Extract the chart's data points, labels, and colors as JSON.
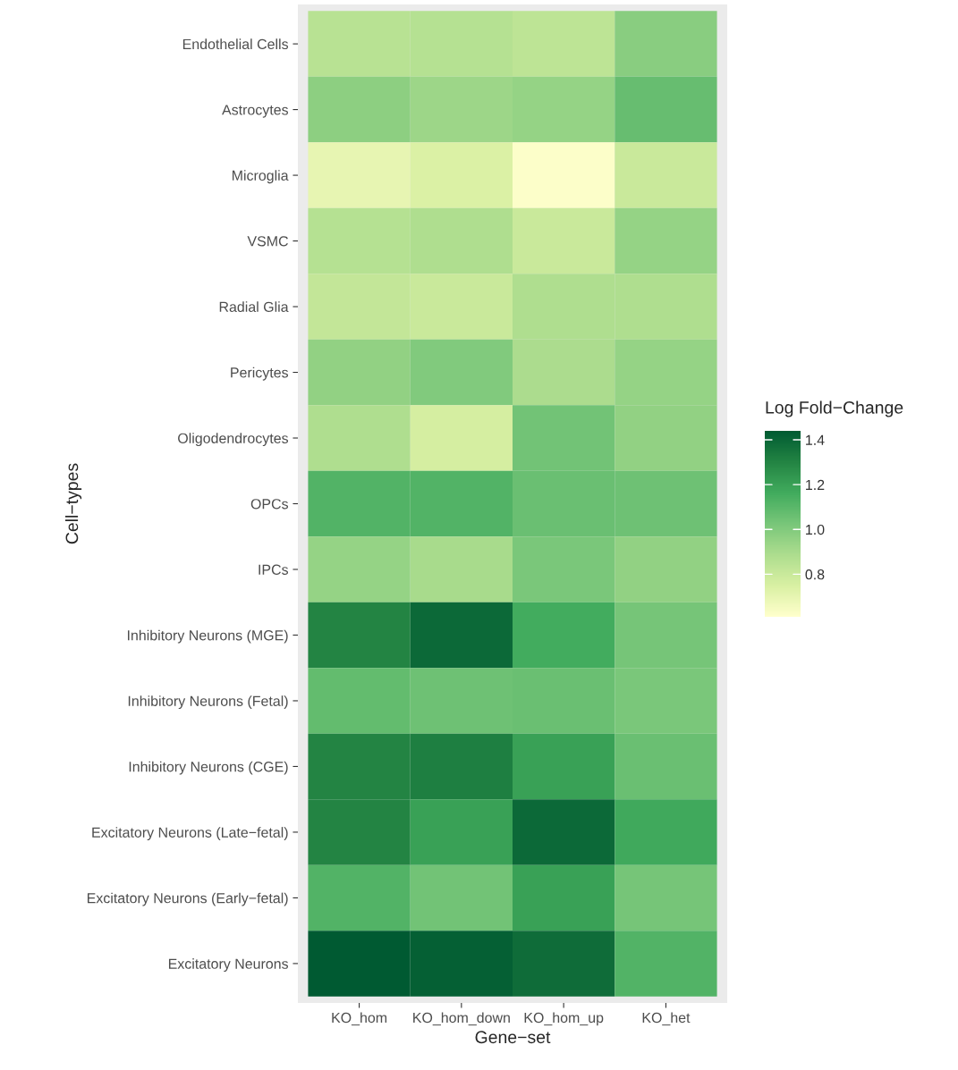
{
  "chart_data": {
    "type": "heatmap",
    "xlabel": "Gene−set",
    "ylabel": "Cell−types",
    "clabel": "Log Fold−Change",
    "categories": [
      "KO_hom",
      "KO_hom_down",
      "KO_hom_up",
      "KO_het"
    ],
    "y_categories": [
      "Endothelial Cells",
      "Astrocytes",
      "Microglia",
      "VSMC",
      "Radial Glia",
      "Pericytes",
      "Oligodendrocytes",
      "OPCs",
      "IPCs",
      "Inhibitory Neurons (MGE)",
      "Inhibitory Neurons (Fetal)",
      "Inhibitory Neurons (CGE)",
      "Excitatory Neurons (Late−fetal)",
      "Excitatory Neurons (Early−fetal)",
      "Excitatory Neurons"
    ],
    "cells": [
      [
        0.85,
        0.86,
        0.84,
        0.98
      ],
      [
        0.97,
        0.93,
        0.95,
        1.07
      ],
      [
        0.7,
        0.74,
        0.62,
        0.8
      ],
      [
        0.86,
        0.88,
        0.8,
        0.95
      ],
      [
        0.82,
        0.8,
        0.88,
        0.88
      ],
      [
        0.96,
        1.0,
        0.89,
        0.95
      ],
      [
        0.88,
        0.76,
        1.04,
        0.96
      ],
      [
        1.12,
        1.12,
        1.06,
        1.05
      ],
      [
        0.95,
        0.9,
        1.02,
        0.96
      ],
      [
        1.3,
        1.39,
        1.16,
        1.03
      ],
      [
        1.08,
        1.05,
        1.06,
        1.02
      ],
      [
        1.3,
        1.32,
        1.2,
        1.06
      ],
      [
        1.3,
        1.2,
        1.39,
        1.17
      ],
      [
        1.12,
        1.04,
        1.2,
        1.03
      ],
      [
        1.44,
        1.42,
        1.38,
        1.12
      ]
    ],
    "clim": [
      0.61,
      1.44
    ],
    "cticks": [
      0.8,
      {
        "value": 1,
        "label": "1.0"
      },
      1.2,
      1.4
    ],
    "colors": [
      "#ffffcc",
      "#d9f0a3",
      "#addd8e",
      "#78c679",
      "#41ab5d",
      "#238443",
      "#005a32"
    ]
  }
}
